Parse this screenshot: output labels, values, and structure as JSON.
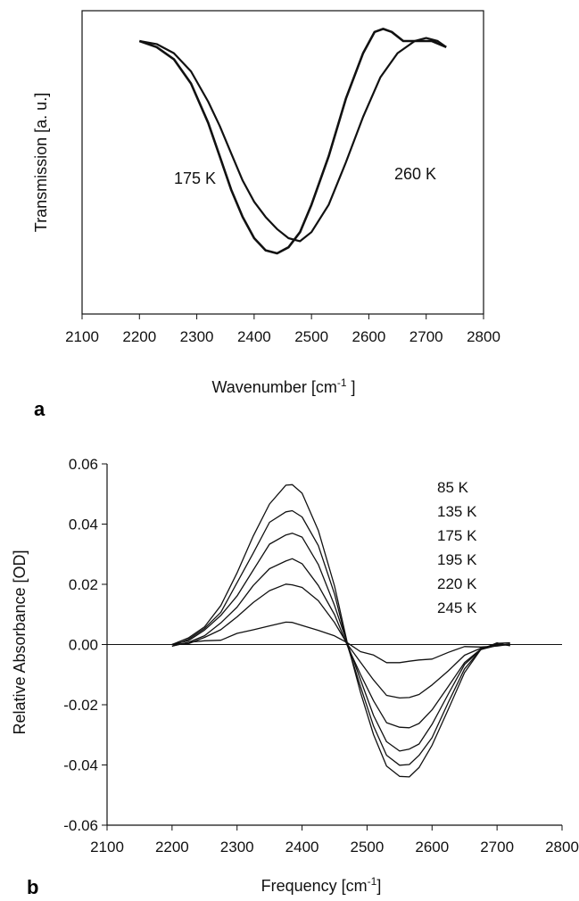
{
  "chart_data": [
    {
      "type": "line",
      "panel_label": "a",
      "xlabel": "Wavenumber [cm",
      "xlabel_sup": "-1",
      "xlabel_end": " ]",
      "ylabel": "Transmission  [a. u.]",
      "xlim": [
        2100,
        2800
      ],
      "xticks": [
        2100,
        2200,
        2300,
        2400,
        2500,
        2600,
        2700,
        2800
      ],
      "annotations": [
        "175 K",
        "260 K"
      ],
      "series": [
        {
          "name": "175 K",
          "x": [
            2200,
            2230,
            2260,
            2290,
            2320,
            2340,
            2360,
            2380,
            2400,
            2420,
            2440,
            2460,
            2480,
            2500,
            2530,
            2560,
            2590,
            2610,
            2625,
            2640,
            2660,
            2690,
            2710,
            2735
          ],
          "y": [
            0.9,
            0.88,
            0.84,
            0.76,
            0.63,
            0.52,
            0.41,
            0.32,
            0.25,
            0.21,
            0.2,
            0.22,
            0.27,
            0.36,
            0.52,
            0.71,
            0.86,
            0.93,
            0.94,
            0.93,
            0.9,
            0.9,
            0.9,
            0.88
          ]
        },
        {
          "name": "260 K",
          "x": [
            2200,
            2230,
            2260,
            2290,
            2320,
            2340,
            2360,
            2380,
            2400,
            2420,
            2440,
            2460,
            2480,
            2500,
            2530,
            2560,
            2590,
            2620,
            2650,
            2680,
            2700,
            2720,
            2735
          ],
          "y": [
            0.9,
            0.89,
            0.86,
            0.8,
            0.7,
            0.62,
            0.53,
            0.44,
            0.37,
            0.32,
            0.28,
            0.25,
            0.24,
            0.27,
            0.36,
            0.5,
            0.65,
            0.78,
            0.86,
            0.9,
            0.91,
            0.9,
            0.88
          ]
        }
      ]
    },
    {
      "type": "line",
      "panel_label": "b",
      "xlabel": "Frequency  [cm",
      "xlabel_sup": "-1",
      "xlabel_end": "]",
      "ylabel": "Relative Absorbance [OD]",
      "xlim": [
        2100,
        2800
      ],
      "ylim": [
        -0.06,
        0.06
      ],
      "xticks": [
        2100,
        2200,
        2300,
        2400,
        2500,
        2600,
        2700,
        2800
      ],
      "yticks": [
        -0.06,
        -0.04,
        -0.02,
        0.0,
        0.02,
        0.04,
        0.06
      ],
      "ytick_labels": [
        "-0.06",
        "-0.04",
        "-0.02",
        "0.00",
        "0.02",
        "0.04",
        "0.06"
      ],
      "legend": [
        "85 K",
        "135 K",
        "175 K",
        "195 K",
        "220 K",
        "245 K"
      ],
      "series": [
        {
          "name": "85 K",
          "peak": 0.053,
          "trough": -0.044
        },
        {
          "name": "135 K",
          "peak": 0.045,
          "trough": -0.04
        },
        {
          "name": "175 K",
          "peak": 0.037,
          "trough": -0.035
        },
        {
          "name": "195 K",
          "peak": 0.028,
          "trough": -0.028
        },
        {
          "name": "220 K",
          "peak": 0.02,
          "trough": -0.018
        },
        {
          "name": "245 K",
          "peak": 0.007,
          "trough": -0.006
        }
      ],
      "x": [
        2200,
        2225,
        2250,
        2275,
        2300,
        2325,
        2350,
        2375,
        2385,
        2400,
        2425,
        2450,
        2470,
        2490,
        2510,
        2530,
        2550,
        2565,
        2580,
        2600,
        2625,
        2650,
        2675,
        2700,
        2720
      ],
      "shape": [
        0.0,
        0.04,
        0.12,
        0.25,
        0.45,
        0.68,
        0.89,
        0.99,
        1.0,
        0.95,
        0.72,
        0.36,
        0.0,
        -0.35,
        -0.68,
        -0.91,
        -1.0,
        -0.99,
        -0.93,
        -0.76,
        -0.48,
        -0.2,
        -0.05,
        0.0,
        0.0
      ]
    }
  ]
}
